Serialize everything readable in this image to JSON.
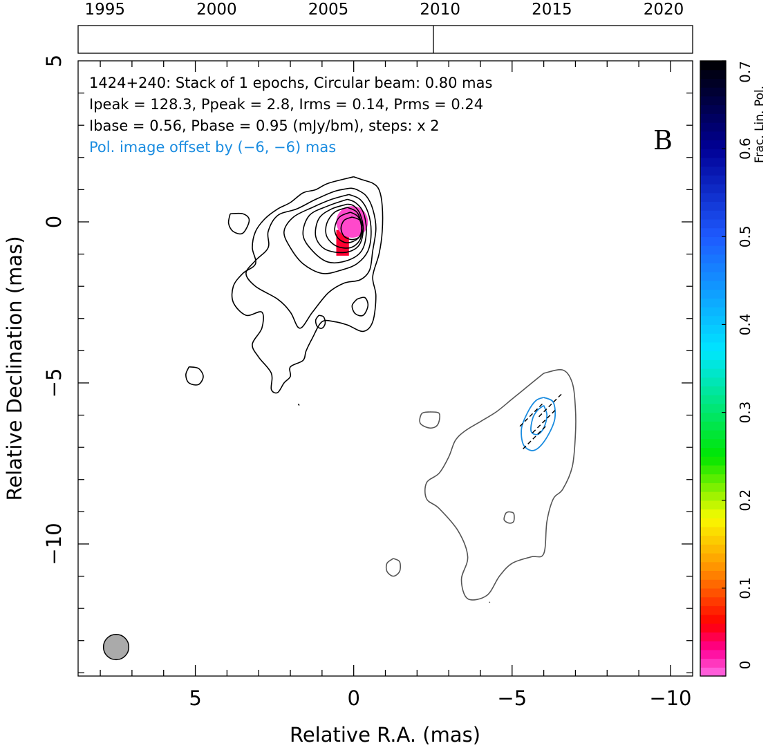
{
  "chart_data": {
    "type": "contour",
    "xlabel": "Relative R.A. (mas)",
    "ylabel": "Relative Declination (mas)",
    "xlim": [
      8.7,
      -10.7
    ],
    "ylim": [
      -14.1,
      5.0
    ],
    "x_ticks": [
      {
        "value": 5,
        "label": "5"
      },
      {
        "value": 0,
        "label": "0"
      },
      {
        "value": -5,
        "label": "−5"
      },
      {
        "value": -10,
        "label": "−10"
      }
    ],
    "y_ticks": [
      {
        "value": 5,
        "label": "5"
      },
      {
        "value": 0,
        "label": "0"
      },
      {
        "value": -5,
        "label": "−5"
      },
      {
        "value": -10,
        "label": "−10"
      }
    ],
    "timeline": {
      "xlim": [
        1993.8,
        2021.3
      ],
      "ticks": [
        {
          "value": 1995,
          "label": "1995"
        },
        {
          "value": 2000,
          "label": "2000"
        },
        {
          "value": 2005,
          "label": "2005"
        },
        {
          "value": 2010,
          "label": "2010"
        },
        {
          "value": 2015,
          "label": "2015"
        },
        {
          "value": 2020,
          "label": "2020"
        }
      ],
      "epochs": [
        2009.7
      ]
    },
    "annotations": {
      "line1": "1424+240: Stack of 1 epochs, Circular beam: 0.80 mas",
      "line2": "Ipeak = 128.3, Ppeak = 2.8, Irms = 0.14, Prms = 0.24",
      "line3": "Ibase = 0.56, Pbase = 0.95 (mJy/bm), steps: x 2",
      "line4": "Pol. image offset by (−6, −6) mas",
      "panel": "B"
    },
    "colorbar": {
      "label": "Frac. Lin. Pol.",
      "min": 0,
      "max": 0.7,
      "ticks": [
        {
          "value": 0,
          "label": "0"
        },
        {
          "value": 0.1,
          "label": "0.1"
        },
        {
          "value": 0.2,
          "label": "0.2"
        },
        {
          "value": 0.3,
          "label": "0.3"
        },
        {
          "value": 0.4,
          "label": "0.4"
        },
        {
          "value": 0.5,
          "label": "0.5"
        },
        {
          "value": 0.6,
          "label": "0.6"
        },
        {
          "value": 0.7,
          "label": "0.7"
        }
      ]
    },
    "beam": {
      "ra": 7.5,
      "dec": -13.2,
      "diameter_mas": 0.8
    },
    "total_intensity_contours": [
      {
        "level": 1,
        "points": [
          [
            0.0,
            1.4
          ],
          [
            0.8,
            1.2
          ],
          [
            1.2,
            1.0
          ],
          [
            1.6,
            0.9
          ],
          [
            2.0,
            0.6
          ],
          [
            2.4,
            0.4
          ],
          [
            2.8,
            0.1
          ],
          [
            3.1,
            -0.3
          ],
          [
            3.2,
            -0.8
          ],
          [
            3.1,
            -1.3
          ],
          [
            3.5,
            -1.6
          ],
          [
            3.8,
            -2.0
          ],
          [
            3.8,
            -2.5
          ],
          [
            3.4,
            -2.9
          ],
          [
            2.9,
            -2.8
          ],
          [
            2.9,
            -3.3
          ],
          [
            3.2,
            -3.8
          ],
          [
            3.0,
            -4.2
          ],
          [
            2.6,
            -4.7
          ],
          [
            2.6,
            -5.2
          ],
          [
            2.4,
            -5.3
          ],
          [
            2.2,
            -5.0
          ],
          [
            2.0,
            -4.8
          ],
          [
            2.0,
            -4.5
          ],
          [
            1.6,
            -4.3
          ],
          [
            1.5,
            -4.0
          ],
          [
            1.3,
            -3.6
          ],
          [
            1.0,
            -3.1
          ],
          [
            0.6,
            -3.1
          ],
          [
            0.2,
            -3.2
          ],
          [
            -0.3,
            -3.4
          ],
          [
            -0.6,
            -3.1
          ],
          [
            -0.7,
            -2.3
          ],
          [
            -0.6,
            -1.7
          ],
          [
            -0.8,
            -1.0
          ],
          [
            -0.9,
            -0.3
          ],
          [
            -0.9,
            0.5
          ],
          [
            -0.8,
            1.0
          ],
          [
            -0.6,
            1.2
          ],
          [
            -0.3,
            1.3
          ],
          [
            0.0,
            1.4
          ]
        ]
      },
      {
        "level": 2,
        "points": [
          [
            0.1,
            1.05
          ],
          [
            0.6,
            0.95
          ],
          [
            1.2,
            0.7
          ],
          [
            1.8,
            0.4
          ],
          [
            2.4,
            0.2
          ],
          [
            2.7,
            -0.3
          ],
          [
            2.7,
            -0.8
          ],
          [
            3.1,
            -1.2
          ],
          [
            3.4,
            -1.6
          ],
          [
            3.1,
            -2.0
          ],
          [
            2.4,
            -2.4
          ],
          [
            2.0,
            -2.8
          ],
          [
            1.7,
            -3.3
          ],
          [
            1.3,
            -2.8
          ],
          [
            0.8,
            -2.2
          ],
          [
            0.3,
            -1.9
          ],
          [
            -0.2,
            -1.8
          ],
          [
            -0.5,
            -1.5
          ],
          [
            -0.6,
            -0.9
          ],
          [
            -0.7,
            -0.2
          ],
          [
            -0.6,
            0.4
          ],
          [
            -0.4,
            0.8
          ],
          [
            -0.1,
            1.0
          ],
          [
            0.1,
            1.05
          ]
        ]
      },
      {
        "level": 4,
        "points": [
          [
            0.15,
            0.85
          ],
          [
            0.7,
            0.7
          ],
          [
            1.3,
            0.45
          ],
          [
            1.9,
            0.15
          ],
          [
            2.2,
            -0.3
          ],
          [
            2.0,
            -0.8
          ],
          [
            1.6,
            -1.3
          ],
          [
            1.0,
            -1.6
          ],
          [
            0.4,
            -1.5
          ],
          [
            -0.1,
            -1.3
          ],
          [
            -0.45,
            -0.9
          ],
          [
            -0.55,
            -0.3
          ],
          [
            -0.45,
            0.3
          ],
          [
            -0.2,
            0.7
          ],
          [
            0.15,
            0.85
          ]
        ]
      },
      {
        "level": 8,
        "points": [
          [
            0.2,
            0.7
          ],
          [
            0.8,
            0.5
          ],
          [
            1.4,
            0.2
          ],
          [
            1.6,
            -0.4
          ],
          [
            1.3,
            -0.9
          ],
          [
            0.8,
            -1.25
          ],
          [
            0.2,
            -1.2
          ],
          [
            -0.25,
            -0.9
          ],
          [
            -0.4,
            -0.3
          ],
          [
            -0.3,
            0.3
          ],
          [
            -0.05,
            0.6
          ],
          [
            0.2,
            0.7
          ]
        ]
      },
      {
        "level": 16,
        "points": [
          [
            0.2,
            0.55
          ],
          [
            0.7,
            0.4
          ],
          [
            1.1,
            0.1
          ],
          [
            1.2,
            -0.45
          ],
          [
            0.9,
            -0.85
          ],
          [
            0.3,
            -0.95
          ],
          [
            -0.15,
            -0.75
          ],
          [
            -0.3,
            -0.25
          ],
          [
            -0.2,
            0.25
          ],
          [
            0.0,
            0.5
          ],
          [
            0.2,
            0.55
          ]
        ]
      },
      {
        "level": 32,
        "points": [
          [
            0.2,
            0.45
          ],
          [
            0.6,
            0.3
          ],
          [
            0.85,
            -0.05
          ],
          [
            0.85,
            -0.45
          ],
          [
            0.55,
            -0.75
          ],
          [
            0.1,
            -0.8
          ],
          [
            -0.2,
            -0.55
          ],
          [
            -0.25,
            -0.1
          ],
          [
            -0.1,
            0.3
          ],
          [
            0.2,
            0.45
          ]
        ]
      },
      {
        "level": 64,
        "points": [
          [
            0.1,
            0.3
          ],
          [
            0.45,
            0.15
          ],
          [
            0.6,
            -0.2
          ],
          [
            0.5,
            -0.5
          ],
          [
            0.2,
            -0.65
          ],
          [
            -0.15,
            -0.5
          ],
          [
            -0.25,
            -0.2
          ],
          [
            -0.15,
            0.15
          ],
          [
            0.1,
            0.3
          ]
        ]
      },
      {
        "level": 128,
        "points": [
          [
            0.05,
            0.15
          ],
          [
            0.3,
            0.05
          ],
          [
            0.4,
            -0.2
          ],
          [
            0.3,
            -0.45
          ],
          [
            0.05,
            -0.55
          ],
          [
            -0.2,
            -0.45
          ],
          [
            -0.3,
            -0.2
          ],
          [
            -0.2,
            0.05
          ],
          [
            0.05,
            0.15
          ]
        ]
      },
      {
        "level": 1,
        "points": [
          [
            3.9,
            0.25
          ],
          [
            3.5,
            0.25
          ],
          [
            3.3,
            0.05
          ],
          [
            3.5,
            -0.35
          ],
          [
            3.8,
            -0.3
          ],
          [
            3.95,
            -0.05
          ],
          [
            3.9,
            0.25
          ]
        ]
      },
      {
        "level": 1,
        "points": [
          [
            -0.1,
            -2.4
          ],
          [
            -0.35,
            -2.35
          ],
          [
            -0.45,
            -2.6
          ],
          [
            -0.3,
            -2.9
          ],
          [
            -0.05,
            -2.85
          ],
          [
            0.05,
            -2.6
          ],
          [
            -0.1,
            -2.4
          ]
        ]
      },
      {
        "level": 1,
        "points": [
          [
            1.1,
            -2.9
          ],
          [
            0.95,
            -2.95
          ],
          [
            0.9,
            -3.15
          ],
          [
            1.0,
            -3.3
          ],
          [
            1.15,
            -3.25
          ],
          [
            1.2,
            -3.05
          ],
          [
            1.1,
            -2.9
          ]
        ]
      },
      {
        "level": 1,
        "points": [
          [
            5.2,
            -4.5
          ],
          [
            4.9,
            -4.55
          ],
          [
            4.75,
            -4.8
          ],
          [
            4.9,
            -5.05
          ],
          [
            5.2,
            -5.0
          ],
          [
            5.3,
            -4.75
          ],
          [
            5.2,
            -4.5
          ]
        ]
      },
      {
        "level": 1,
        "points": [
          [
            1.75,
            -5.65
          ],
          [
            1.72,
            -5.7
          ]
        ]
      }
    ],
    "polarization_contours": [
      {
        "level": 1,
        "points": [
          [
            -6.0,
            -4.7
          ],
          [
            -6.6,
            -4.6
          ],
          [
            -6.9,
            -5.0
          ],
          [
            -7.0,
            -5.8
          ],
          [
            -7.0,
            -6.6
          ],
          [
            -6.9,
            -7.6
          ],
          [
            -6.6,
            -8.3
          ],
          [
            -6.3,
            -8.6
          ],
          [
            -6.1,
            -9.3
          ],
          [
            -6.0,
            -10.3
          ],
          [
            -5.6,
            -10.4
          ],
          [
            -5.0,
            -10.6
          ],
          [
            -4.6,
            -11.0
          ],
          [
            -4.2,
            -11.6
          ],
          [
            -3.6,
            -11.7
          ],
          [
            -3.4,
            -11.1
          ],
          [
            -3.6,
            -10.4
          ],
          [
            -3.3,
            -9.6
          ],
          [
            -2.7,
            -8.9
          ],
          [
            -2.3,
            -8.6
          ],
          [
            -2.3,
            -8.1
          ],
          [
            -2.7,
            -7.8
          ],
          [
            -3.0,
            -7.3
          ],
          [
            -3.2,
            -6.8
          ],
          [
            -3.5,
            -6.5
          ],
          [
            -4.0,
            -6.2
          ],
          [
            -4.5,
            -5.9
          ],
          [
            -5.0,
            -5.5
          ],
          [
            -5.5,
            -5.1
          ],
          [
            -6.0,
            -4.7
          ]
        ]
      },
      {
        "level": 1,
        "points": [
          [
            -2.4,
            -5.9
          ],
          [
            -2.7,
            -5.95
          ],
          [
            -2.65,
            -6.3
          ],
          [
            -2.4,
            -6.4
          ],
          [
            -2.1,
            -6.25
          ],
          [
            -2.15,
            -5.95
          ],
          [
            -2.4,
            -5.9
          ]
        ]
      },
      {
        "level": 1,
        "points": [
          [
            -1.25,
            -10.45
          ],
          [
            -1.45,
            -10.55
          ],
          [
            -1.45,
            -10.85
          ],
          [
            -1.25,
            -11.0
          ],
          [
            -1.05,
            -10.85
          ],
          [
            -1.05,
            -10.6
          ],
          [
            -1.25,
            -10.45
          ]
        ]
      },
      {
        "level": 1,
        "points": [
          [
            -4.9,
            -9.0
          ],
          [
            -5.05,
            -9.05
          ],
          [
            -5.05,
            -9.3
          ],
          [
            -4.9,
            -9.35
          ],
          [
            -4.75,
            -9.25
          ],
          [
            -4.8,
            -9.05
          ],
          [
            -4.9,
            -9.0
          ]
        ]
      },
      {
        "level": 1,
        "points": [
          [
            -4.3,
            -11.8
          ],
          [
            -4.28,
            -11.82
          ]
        ]
      }
    ],
    "polarized_intensity_contours": [
      {
        "level": 1,
        "points": [
          [
            -6.0,
            -5.45
          ],
          [
            -6.3,
            -5.6
          ],
          [
            -6.35,
            -6.1
          ],
          [
            -6.15,
            -6.6
          ],
          [
            -5.85,
            -7.0
          ],
          [
            -5.6,
            -7.1
          ],
          [
            -5.35,
            -6.9
          ],
          [
            -5.3,
            -6.4
          ],
          [
            -5.5,
            -5.9
          ],
          [
            -5.75,
            -5.55
          ],
          [
            -6.0,
            -5.45
          ]
        ]
      },
      {
        "level": 2,
        "points": [
          [
            -6.0,
            -5.7
          ],
          [
            -6.1,
            -6.0
          ],
          [
            -6.0,
            -6.4
          ],
          [
            -5.8,
            -6.6
          ],
          [
            -5.6,
            -6.5
          ],
          [
            -5.65,
            -6.1
          ],
          [
            -5.8,
            -5.85
          ],
          [
            -6.0,
            -5.7
          ]
        ]
      }
    ],
    "evpa_vectors": [
      {
        "ra": -5.6,
        "dec": -6.0,
        "angle_deg": 45
      },
      {
        "ra": -6.0,
        "dec": -6.2,
        "angle_deg": 45
      },
      {
        "ra": -6.2,
        "dec": -5.7,
        "angle_deg": 45
      },
      {
        "ra": -5.7,
        "dec": -6.7,
        "angle_deg": 45
      }
    ],
    "fractional_polarization_pixels": [
      {
        "ra": 0.05,
        "dec": 0.0,
        "value": 0.01
      },
      {
        "ra": 0.35,
        "dec": -0.55,
        "value": 0.05
      }
    ]
  }
}
